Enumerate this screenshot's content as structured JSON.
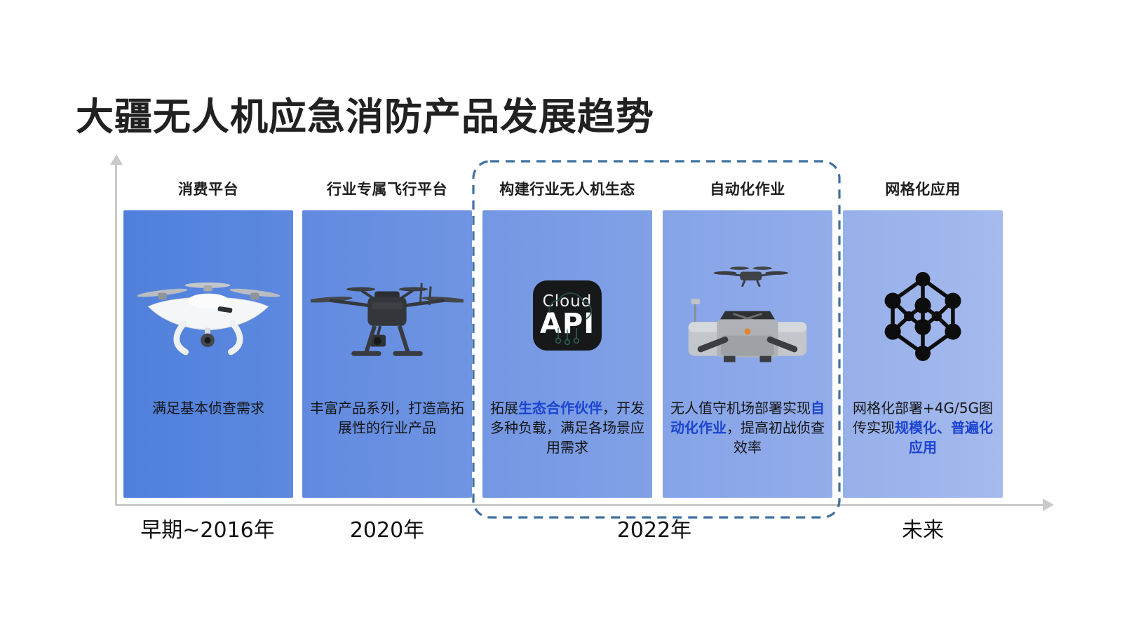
{
  "title": "大疆无人机应急消防产品发展趋势",
  "columns": [
    {
      "header": "消费平台",
      "icon": "phantom-drone-photo",
      "caption": [
        {
          "text": "满足基本侦查需求",
          "hl": false
        }
      ]
    },
    {
      "header": "行业专属飞行平台",
      "icon": "matrice-drone-photo",
      "caption": [
        {
          "text": "丰富产品系列，打造高拓展性的行业产品",
          "hl": false
        }
      ]
    },
    {
      "header": "构建行业无人机生态",
      "icon": "cloud-api-tile",
      "caption": [
        {
          "text": "拓展",
          "hl": false
        },
        {
          "text": "生态合作伙伴",
          "hl": true
        },
        {
          "text": "，开发多种负载，满足各场景应用需求",
          "hl": false
        }
      ]
    },
    {
      "header": "自动化作业",
      "icon": "dock-drone-photo",
      "caption": [
        {
          "text": "无人值守机场部署实现",
          "hl": false
        },
        {
          "text": "自动化作业",
          "hl": true
        },
        {
          "text": "，提高初战侦查效率",
          "hl": false
        }
      ]
    },
    {
      "header": "网格化应用",
      "icon": "network-grid-icon",
      "caption": [
        {
          "text": "网格化部署+4G/5G图传实现",
          "hl": false
        },
        {
          "text": "规模化、普遍化应用",
          "hl": true
        }
      ]
    }
  ],
  "timeline_labels": [
    {
      "text": "早期~2016年"
    },
    {
      "text": "2020年"
    },
    {
      "text": "2022年"
    },
    {
      "text": "未来"
    }
  ],
  "cloud_api_tile": {
    "line1": "Cloud",
    "line2": "API"
  },
  "colors": {
    "highlight_blue": "#1B44D0",
    "dashed_border": "#3F70A0",
    "axis_gray": "#C9C9C9",
    "panel_gradients": [
      [
        "#5080DC",
        "#5D89DF"
      ],
      [
        "#618ADF",
        "#6F95E3"
      ],
      [
        "#7497E3",
        "#81A1E6"
      ],
      [
        "#85A3E7",
        "#93ADEA"
      ],
      [
        "#97B0EA",
        "#A5BAED"
      ]
    ]
  }
}
